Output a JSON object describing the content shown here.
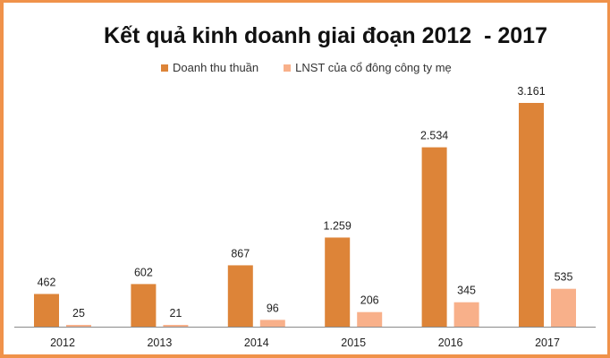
{
  "chart_data": {
    "type": "bar",
    "title": "Kết quả kinh doanh giai đoạn 2012  - 2017",
    "categories": [
      "2012",
      "2013",
      "2014",
      "2015",
      "2016",
      "2017"
    ],
    "series": [
      {
        "name": "Doanh thu thuần",
        "color": "#dd8438",
        "values": [
          462,
          602,
          867,
          1259,
          2534,
          3161
        ],
        "labels": [
          "462",
          "602",
          "867",
          "1.259",
          "2.534",
          "3.161"
        ]
      },
      {
        "name": "LNST của cổ đông công ty mẹ",
        "color": "#f8b08a",
        "values": [
          25,
          21,
          96,
          206,
          345,
          535
        ],
        "labels": [
          "25",
          "21",
          "96",
          "206",
          "345",
          "535"
        ]
      }
    ],
    "xlabel": "",
    "ylabel": "",
    "grid": false,
    "legend_position": "top"
  },
  "frame": {
    "border_color": "#f0924a"
  },
  "axis": {
    "color": "#8a8a8a"
  }
}
